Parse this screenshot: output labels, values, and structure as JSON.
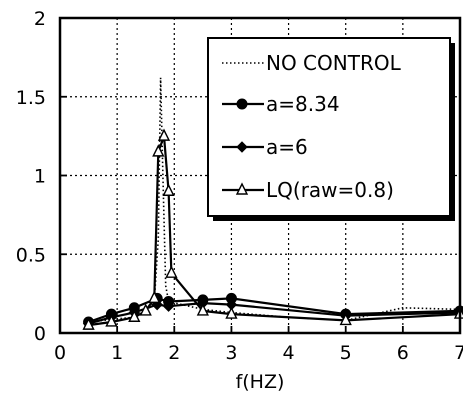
{
  "chart_data": {
    "type": "line",
    "title": "",
    "xlabel": "f(HZ)",
    "ylabel": "",
    "xlim": [
      0,
      7
    ],
    "ylim": [
      0,
      2
    ],
    "x_ticks": [
      "0",
      "1",
      "2",
      "3",
      "4",
      "5",
      "6",
      "7"
    ],
    "y_ticks": [
      "0",
      "0.5",
      "1",
      "1.5",
      "2"
    ],
    "grid": true,
    "legend_position": "top-right",
    "series": [
      {
        "name": "NO CONTROL",
        "style": "dotted",
        "marker": "none",
        "points": [
          [
            0.5,
            0.07
          ],
          [
            1.0,
            0.09
          ],
          [
            1.3,
            0.1
          ],
          [
            1.5,
            0.13
          ],
          [
            1.65,
            0.2
          ],
          [
            1.72,
            0.6
          ],
          [
            1.76,
            1.62
          ],
          [
            1.8,
            1.0
          ],
          [
            1.85,
            0.3
          ],
          [
            1.9,
            0.2
          ],
          [
            2.5,
            0.15
          ],
          [
            3.0,
            0.13
          ],
          [
            4.0,
            0.1
          ],
          [
            5.0,
            0.08
          ],
          [
            6.0,
            0.16
          ],
          [
            7.0,
            0.15
          ]
        ]
      },
      {
        "name": "a=8.34",
        "style": "solid",
        "marker": "filled-circle",
        "points": [
          [
            0.5,
            0.07
          ],
          [
            0.9,
            0.12
          ],
          [
            1.3,
            0.16
          ],
          [
            1.7,
            0.22
          ],
          [
            1.9,
            0.2
          ],
          [
            2.5,
            0.21
          ],
          [
            3.0,
            0.22
          ],
          [
            5.0,
            0.12
          ],
          [
            7.0,
            0.14
          ]
        ]
      },
      {
        "name": "a=6",
        "style": "solid",
        "marker": "filled-diamond",
        "points": [
          [
            0.5,
            0.06
          ],
          [
            0.9,
            0.1
          ],
          [
            1.3,
            0.13
          ],
          [
            1.7,
            0.18
          ],
          [
            1.9,
            0.17
          ],
          [
            2.5,
            0.19
          ],
          [
            3.0,
            0.18
          ],
          [
            5.0,
            0.11
          ],
          [
            7.0,
            0.13
          ]
        ]
      },
      {
        "name": "LQ(raw=0.8)",
        "style": "solid",
        "marker": "open-triangle",
        "points": [
          [
            0.5,
            0.05
          ],
          [
            0.9,
            0.07
          ],
          [
            1.3,
            0.1
          ],
          [
            1.5,
            0.14
          ],
          [
            1.65,
            0.22
          ],
          [
            1.72,
            1.15
          ],
          [
            1.82,
            1.25
          ],
          [
            1.9,
            0.9
          ],
          [
            1.95,
            0.38
          ],
          [
            2.5,
            0.14
          ],
          [
            3.0,
            0.12
          ],
          [
            5.0,
            0.08
          ],
          [
            7.0,
            0.12
          ]
        ]
      }
    ]
  }
}
